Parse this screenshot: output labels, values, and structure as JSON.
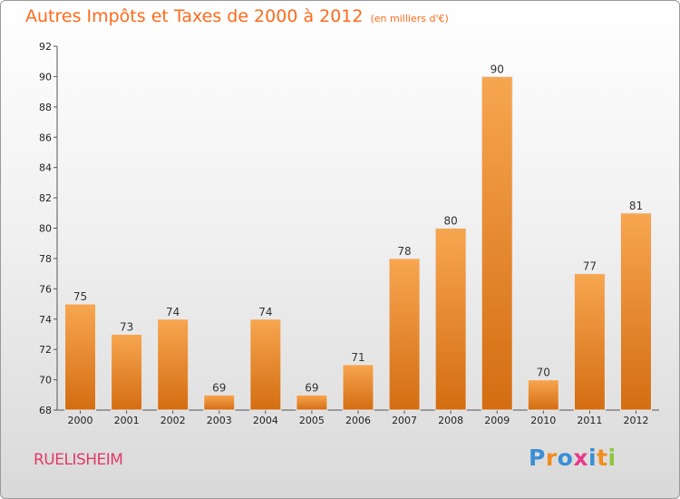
{
  "title": "Autres Impôts et Taxes de 2000 à 2012",
  "unit": "(en milliers d'€)",
  "commune": "RUELISHEIM",
  "logo": {
    "text": "Proxiti",
    "letters": [
      {
        "ch": "P",
        "color": "#3a8fd6"
      },
      {
        "ch": "r",
        "color": "#f28c1e"
      },
      {
        "ch": "o",
        "color": "#3a8fd6"
      },
      {
        "ch": "x",
        "color": "#e83a8a"
      },
      {
        "ch": "i",
        "color": "#3a8fd6"
      },
      {
        "ch": "t",
        "color": "#f28c1e"
      },
      {
        "ch": "i",
        "color": "#8dc63f"
      }
    ]
  },
  "colors": {
    "bar_top": "#f7a650",
    "bar_bottom": "#d46d12",
    "title": "#ff6a1a",
    "commune": "#e03a6a"
  },
  "chart_data": {
    "type": "bar",
    "title": "Autres Impôts et Taxes de 2000 à 2012",
    "subtitle": "(en milliers d'€)",
    "xlabel": "",
    "ylabel": "",
    "categories": [
      "2000",
      "2001",
      "2002",
      "2003",
      "2004",
      "2005",
      "2006",
      "2007",
      "2008",
      "2009",
      "2010",
      "2011",
      "2012"
    ],
    "values": [
      75,
      73,
      74,
      69,
      74,
      69,
      71,
      78,
      80,
      90,
      70,
      77,
      81
    ],
    "ylim": [
      68,
      92
    ],
    "yticks": [
      68,
      70,
      72,
      74,
      76,
      78,
      80,
      82,
      84,
      86,
      88,
      90,
      92
    ],
    "grid": false
  }
}
